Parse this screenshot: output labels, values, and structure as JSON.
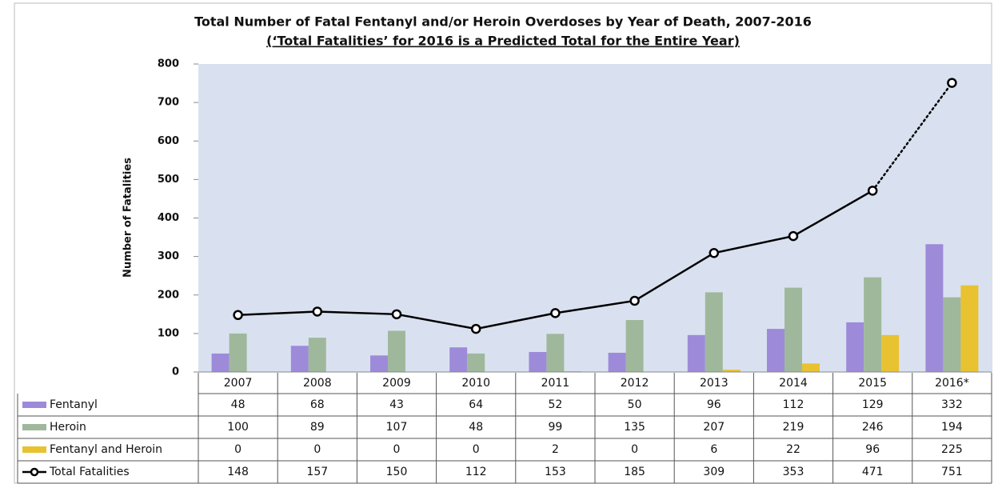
{
  "chart_data": {
    "type": "bar",
    "title": "Total Number of Fatal Fentanyl and/or Heroin Overdoses by Year of Death, 2007-2016",
    "subtitle": "(‘Total Fatalities’ for 2016 is a Predicted Total for the Entire Year)",
    "y_label": "Number of Fatalities",
    "categories": [
      "2007",
      "2008",
      "2009",
      "2010",
      "2011",
      "2012",
      "2013",
      "2014",
      "2015",
      "2016*"
    ],
    "series": [
      {
        "name": "Fentanyl",
        "color": "#9d8bd9",
        "kind": "bar",
        "values": [
          48,
          68,
          43,
          64,
          52,
          50,
          96,
          112,
          129,
          332
        ]
      },
      {
        "name": "Heroin",
        "color": "#9fb89c",
        "kind": "bar",
        "values": [
          100,
          89,
          107,
          48,
          99,
          135,
          207,
          219,
          246,
          194
        ]
      },
      {
        "name": "Fentanyl and Heroin",
        "color": "#e8c230",
        "kind": "bar",
        "values": [
          0,
          0,
          0,
          0,
          2,
          0,
          6,
          22,
          96,
          225
        ]
      },
      {
        "name": "Total Fatalities",
        "color": "#000000",
        "kind": "line",
        "last_segment": "dotted",
        "values": [
          148,
          157,
          150,
          112,
          153,
          185,
          309,
          353,
          471,
          751
        ]
      }
    ],
    "ylim": [
      0,
      800
    ],
    "yticks": [
      0,
      100,
      200,
      300,
      400,
      500,
      600,
      700,
      800
    ],
    "plot_background": "#d9e1f0",
    "data_table": true
  }
}
